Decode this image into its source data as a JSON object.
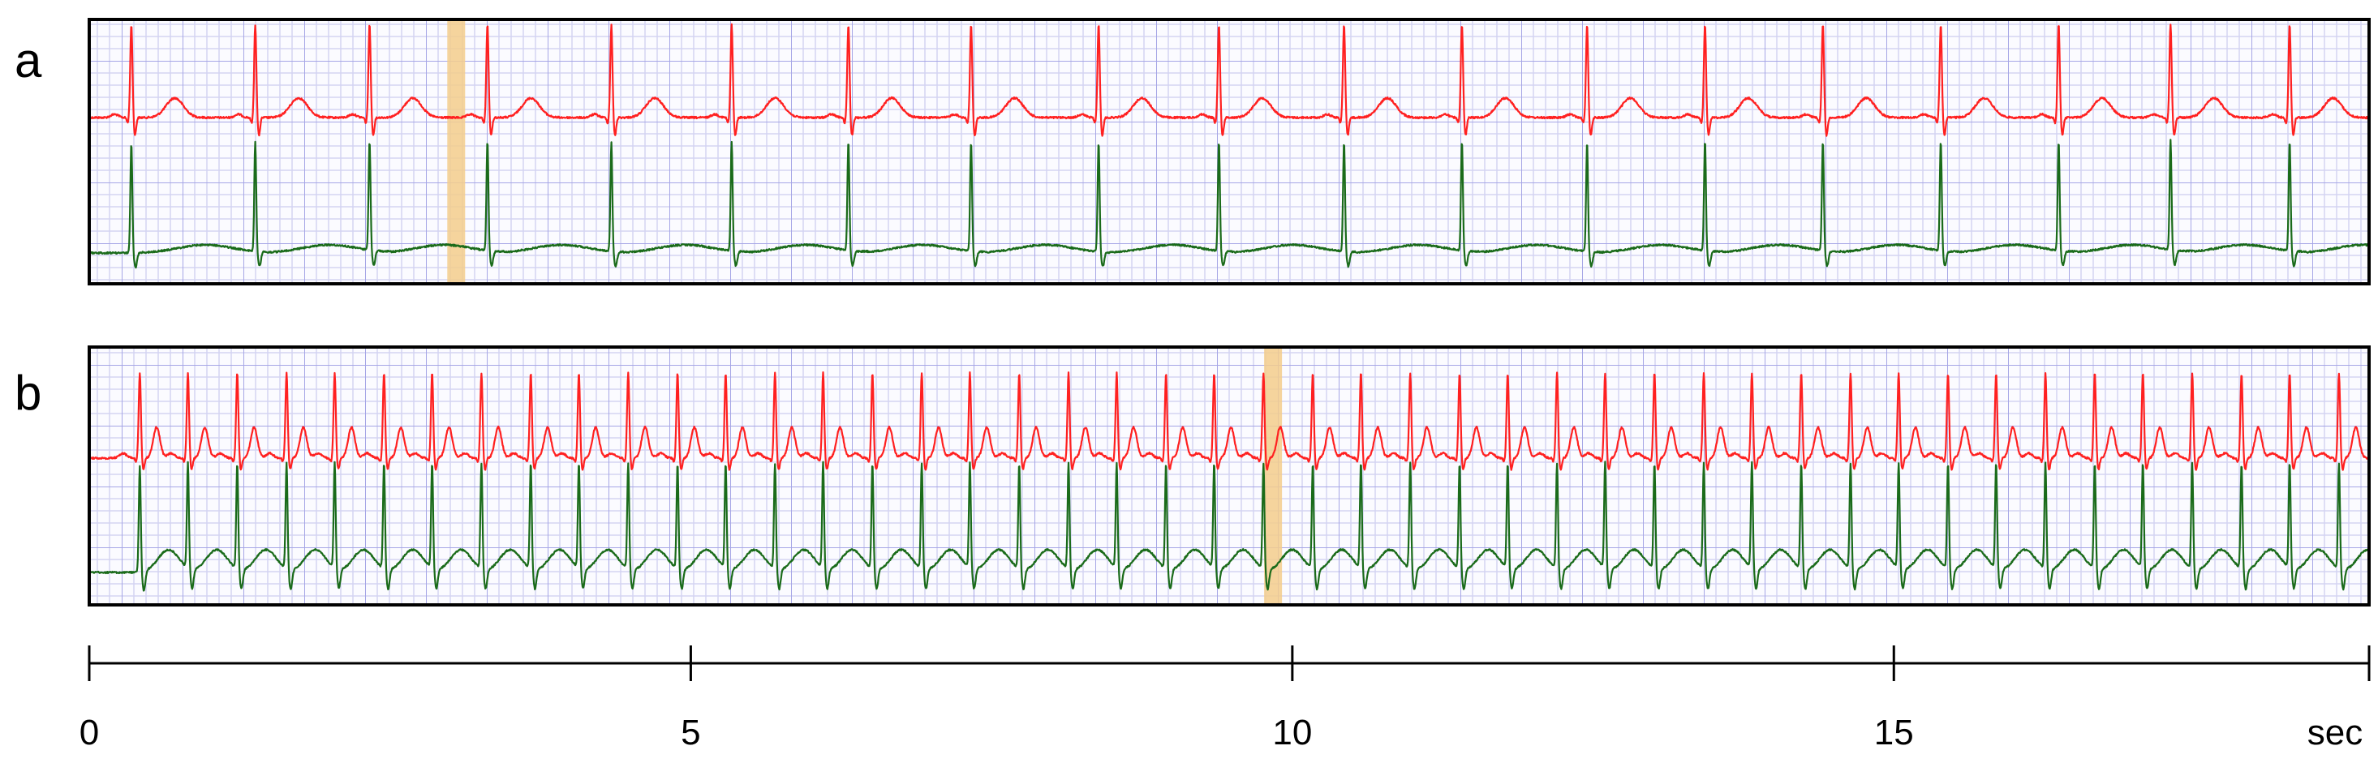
{
  "chart_data": {
    "type": "line",
    "title": "",
    "xlabel": "sec",
    "x_ticks": [
      0,
      5,
      10,
      15
    ],
    "xlim": [
      0,
      18.95
    ],
    "grid": true,
    "colors": {
      "lead_top": "#ff2020",
      "lead_bottom": "#1a6b1a",
      "grid_minor": "#d4d4f2",
      "grid_major": "#a6a6e6",
      "highlight": "#f3cc8c"
    },
    "panels": [
      {
        "label": "a",
        "beat_times_sec": [
          0.35,
          1.38,
          2.33,
          3.31,
          4.34,
          5.34,
          6.31,
          7.33,
          8.39,
          9.39,
          10.43,
          11.41,
          12.45,
          13.43,
          14.41,
          15.39,
          16.37,
          17.3,
          18.29
        ],
        "highlight_sec": 3.05,
        "series": [
          {
            "lead": "top",
            "color": "red"
          },
          {
            "lead": "bottom",
            "color": "green"
          }
        ]
      },
      {
        "label": "b",
        "beat_times_sec": [
          0.42,
          0.82,
          1.23,
          1.64,
          2.04,
          2.45,
          2.85,
          3.26,
          3.67,
          4.07,
          4.48,
          4.89,
          5.29,
          5.7,
          6.1,
          6.51,
          6.92,
          7.32,
          7.73,
          8.14,
          8.54,
          8.95,
          9.35,
          9.76,
          10.17,
          10.57,
          10.98,
          11.39,
          11.79,
          12.2,
          12.6,
          13.01,
          13.42,
          13.82,
          14.23,
          14.64,
          15.04,
          15.45,
          15.85,
          16.26,
          16.67,
          17.07,
          17.48,
          17.89,
          18.29,
          18.7
        ],
        "highlight_sec": 9.84,
        "series": [
          {
            "lead": "top",
            "color": "red"
          },
          {
            "lead": "bottom",
            "color": "green"
          }
        ]
      }
    ]
  }
}
